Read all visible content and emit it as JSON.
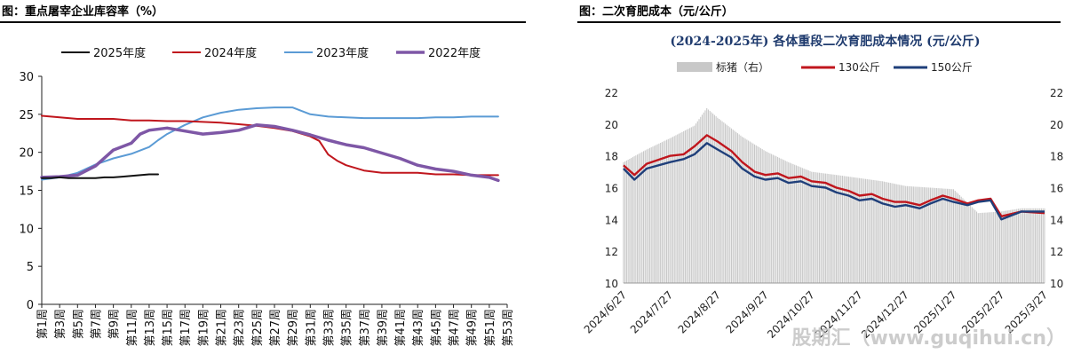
{
  "left_panel": {
    "figure_title": "图：重点屠宰企业库容率（%）"
  },
  "right_panel": {
    "figure_title": "图：二次育肥成本（元/公斤）"
  },
  "watermark": "股期汇（www.guqihui.cn）",
  "colors": {
    "s2025": "#111111",
    "s2024": "#c0161d",
    "s2023": "#5b9bd5",
    "s2022": "#7e57a6",
    "bars": "#c8c8c8",
    "w130": "#c0161d",
    "w150": "#1f3f7a"
  },
  "chart_data": [
    {
      "type": "line",
      "title": "",
      "xlabel": "",
      "ylabel": "",
      "ylim": [
        0,
        30
      ],
      "yticks": [
        0,
        5,
        10,
        15,
        20,
        25,
        30
      ],
      "x_tick_labels": [
        "第1周",
        "第3周",
        "第5周",
        "第7周",
        "第9周",
        "第11周",
        "第13周",
        "第15周",
        "第17周",
        "第19周",
        "第21周",
        "第23周",
        "第25周",
        "第27周",
        "第29周",
        "第31周",
        "第33周",
        "第35周",
        "第37周",
        "第39周",
        "第41周",
        "第43周",
        "第45周",
        "第47周",
        "第49周",
        "第51周",
        "第53周"
      ],
      "legend_position": "top",
      "series": [
        {
          "name": "2025年度",
          "x": [
            1,
            2,
            3,
            4,
            5,
            6,
            7,
            8,
            9,
            10,
            11,
            12,
            13,
            14
          ],
          "values": [
            16.6,
            16.6,
            16.7,
            16.6,
            16.6,
            16.6,
            16.6,
            16.7,
            16.7,
            16.8,
            16.9,
            17.0,
            17.1,
            17.1
          ]
        },
        {
          "name": "2024年度",
          "x": [
            1,
            3,
            5,
            7,
            9,
            11,
            13,
            15,
            17,
            19,
            21,
            23,
            25,
            27,
            29,
            31,
            32,
            33,
            34,
            35,
            37,
            39,
            41,
            43,
            45,
            47,
            49,
            51,
            52
          ],
          "values": [
            24.8,
            24.6,
            24.4,
            24.4,
            24.4,
            24.2,
            24.2,
            24.1,
            24.1,
            24.0,
            23.9,
            23.7,
            23.5,
            23.2,
            22.8,
            22.1,
            21.5,
            19.7,
            18.9,
            18.3,
            17.6,
            17.3,
            17.3,
            17.3,
            17.1,
            17.1,
            17.0,
            17.0,
            17.0
          ]
        },
        {
          "name": "2023年度",
          "x": [
            1,
            3,
            5,
            7,
            9,
            11,
            13,
            14,
            15,
            17,
            19,
            21,
            23,
            25,
            27,
            29,
            31,
            33,
            35,
            37,
            39,
            41,
            43,
            45,
            47,
            49,
            51,
            52
          ],
          "values": [
            16.4,
            16.7,
            17.3,
            18.4,
            19.2,
            19.8,
            20.7,
            21.6,
            22.4,
            23.6,
            24.6,
            25.2,
            25.6,
            25.8,
            25.9,
            25.9,
            25.0,
            24.7,
            24.6,
            24.5,
            24.5,
            24.5,
            24.5,
            24.6,
            24.6,
            24.7,
            24.7,
            24.7
          ]
        },
        {
          "name": "2022年度",
          "x": [
            1,
            3,
            5,
            7,
            9,
            11,
            12,
            13,
            15,
            17,
            19,
            21,
            23,
            25,
            27,
            29,
            31,
            33,
            35,
            37,
            39,
            41,
            43,
            45,
            47,
            49,
            51,
            52
          ],
          "values": [
            16.7,
            16.8,
            17.0,
            18.2,
            20.3,
            21.2,
            22.4,
            22.9,
            23.2,
            22.8,
            22.4,
            22.6,
            22.9,
            23.6,
            23.4,
            22.9,
            22.3,
            21.6,
            21.0,
            20.6,
            19.9,
            19.2,
            18.3,
            17.8,
            17.5,
            17.0,
            16.7,
            16.3
          ]
        }
      ]
    },
    {
      "type": "line",
      "title": "(2024-2025年) 各体重段二次育肥成本情况 (元/公斤)",
      "xlabel": "",
      "ylabel": "",
      "ylim": [
        10,
        22
      ],
      "yticks": [
        10,
        12,
        14,
        16,
        18,
        20,
        22
      ],
      "y2lim": [
        10,
        22
      ],
      "y2ticks": [
        10,
        12,
        14,
        16,
        18,
        20,
        22
      ],
      "x_tick_labels": [
        "2024/6/27",
        "2024/7/27",
        "2024/8/27",
        "2024/9/27",
        "2024/10/27",
        "2024/11/27",
        "2024/12/27",
        "2025/1/27",
        "2025/2/27",
        "2025/3/27"
      ],
      "legend_position": "top",
      "bars": {
        "name": "标猪（右）",
        "axis": "right",
        "x": [
          "2024/6/27",
          "2024/7/12",
          "2024/7/27",
          "2024/8/12",
          "2024/8/20",
          "2024/8/27",
          "2024/9/12",
          "2024/9/27",
          "2024/10/12",
          "2024/10/27",
          "2024/11/12",
          "2024/11/27",
          "2024/12/12",
          "2024/12/27",
          "2025/1/12",
          "2025/1/27",
          "2025/2/12",
          "2025/2/27",
          "2025/3/12",
          "2025/3/27"
        ],
        "values": [
          17.6,
          18.4,
          19.1,
          19.9,
          21.0,
          20.4,
          19.2,
          18.3,
          17.6,
          17.0,
          16.8,
          16.6,
          16.4,
          16.1,
          16.0,
          15.9,
          14.4,
          14.5,
          14.7,
          14.7
        ]
      },
      "series": [
        {
          "name": "130公斤",
          "x": [
            "2024/6/27",
            "2024/7/4",
            "2024/7/12",
            "2024/7/27",
            "2024/8/5",
            "2024/8/12",
            "2024/8/20",
            "2024/8/27",
            "2024/9/5",
            "2024/9/12",
            "2024/9/20",
            "2024/9/27",
            "2024/10/5",
            "2024/10/12",
            "2024/10/20",
            "2024/10/27",
            "2024/11/5",
            "2024/11/12",
            "2024/11/20",
            "2024/11/27",
            "2024/12/5",
            "2024/12/12",
            "2024/12/20",
            "2024/12/27",
            "2025/1/5",
            "2025/1/12",
            "2025/1/20",
            "2025/1/27",
            "2025/2/5",
            "2025/2/12",
            "2025/2/20",
            "2025/2/27",
            "2025/3/12",
            "2025/3/27"
          ],
          "values": [
            17.4,
            16.8,
            17.5,
            18.0,
            18.1,
            18.6,
            19.3,
            18.9,
            18.3,
            17.6,
            17.0,
            16.8,
            16.9,
            16.6,
            16.7,
            16.4,
            16.3,
            16.0,
            15.8,
            15.5,
            15.6,
            15.3,
            15.1,
            15.1,
            14.9,
            15.2,
            15.5,
            15.3,
            15.0,
            15.2,
            15.3,
            14.2,
            14.5,
            14.4
          ]
        },
        {
          "name": "150公斤",
          "x": [
            "2024/6/27",
            "2024/7/4",
            "2024/7/12",
            "2024/7/27",
            "2024/8/5",
            "2024/8/12",
            "2024/8/20",
            "2024/8/27",
            "2024/9/5",
            "2024/9/12",
            "2024/9/20",
            "2024/9/27",
            "2024/10/5",
            "2024/10/12",
            "2024/10/20",
            "2024/10/27",
            "2024/11/5",
            "2024/11/12",
            "2024/11/20",
            "2024/11/27",
            "2024/12/5",
            "2024/12/12",
            "2024/12/20",
            "2024/12/27",
            "2025/1/5",
            "2025/1/12",
            "2025/1/20",
            "2025/1/27",
            "2025/2/5",
            "2025/2/12",
            "2025/2/20",
            "2025/2/27",
            "2025/3/12",
            "2025/3/27"
          ],
          "values": [
            17.2,
            16.5,
            17.2,
            17.6,
            17.8,
            18.1,
            18.8,
            18.4,
            17.9,
            17.2,
            16.7,
            16.5,
            16.6,
            16.3,
            16.4,
            16.1,
            16.0,
            15.7,
            15.5,
            15.2,
            15.3,
            15.0,
            14.8,
            14.9,
            14.7,
            15.0,
            15.3,
            15.1,
            14.9,
            15.1,
            15.2,
            14.0,
            14.5,
            14.5
          ]
        }
      ]
    }
  ]
}
